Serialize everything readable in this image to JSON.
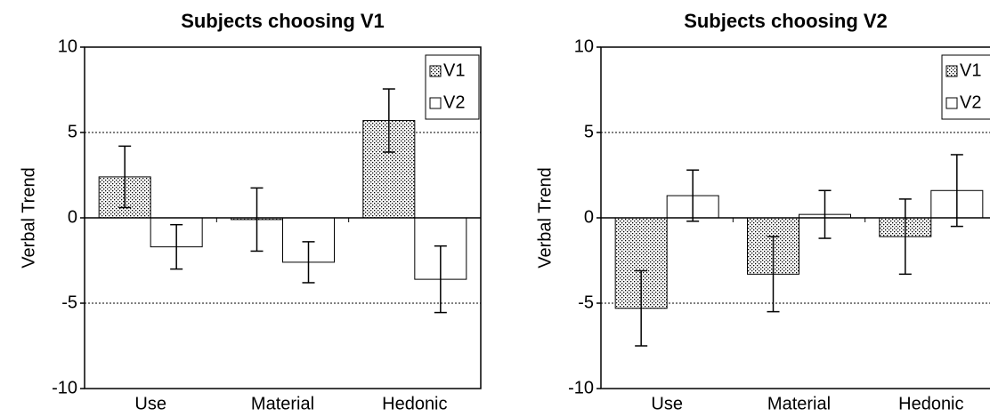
{
  "chart_data": [
    {
      "type": "bar",
      "title": "Subjects choosing V1",
      "ylabel": "Verbal Trend",
      "categories": [
        "Use",
        "Material",
        "Hedonic"
      ],
      "series": [
        {
          "name": "V1",
          "color": "#d9d9d9",
          "values": [
            2.4,
            -0.1,
            5.7
          ],
          "errors": [
            1.8,
            1.85,
            1.85
          ]
        },
        {
          "name": "V2",
          "color": "#ffffff",
          "values": [
            -1.7,
            -2.6,
            -3.6
          ],
          "errors": [
            1.3,
            1.2,
            1.95
          ]
        }
      ],
      "ylim": [
        -10,
        10
      ],
      "yticks": [
        -10,
        -5,
        0,
        5,
        10
      ],
      "grid": true,
      "legend": "upper right"
    },
    {
      "type": "bar",
      "title": "Subjects choosing V2",
      "ylabel": "Verbal Trend",
      "categories": [
        "Use",
        "Material",
        "Hedonic"
      ],
      "series": [
        {
          "name": "V1",
          "color": "#d9d9d9",
          "values": [
            -5.3,
            -3.3,
            -1.1
          ],
          "errors": [
            2.2,
            2.2,
            2.2
          ]
        },
        {
          "name": "V2",
          "color": "#ffffff",
          "values": [
            1.3,
            0.2,
            1.6
          ],
          "errors": [
            1.5,
            1.4,
            2.1
          ]
        }
      ],
      "ylim": [
        -10,
        10
      ],
      "yticks": [
        -10,
        -5,
        0,
        5,
        10
      ],
      "grid": true,
      "legend": "upper right"
    }
  ]
}
